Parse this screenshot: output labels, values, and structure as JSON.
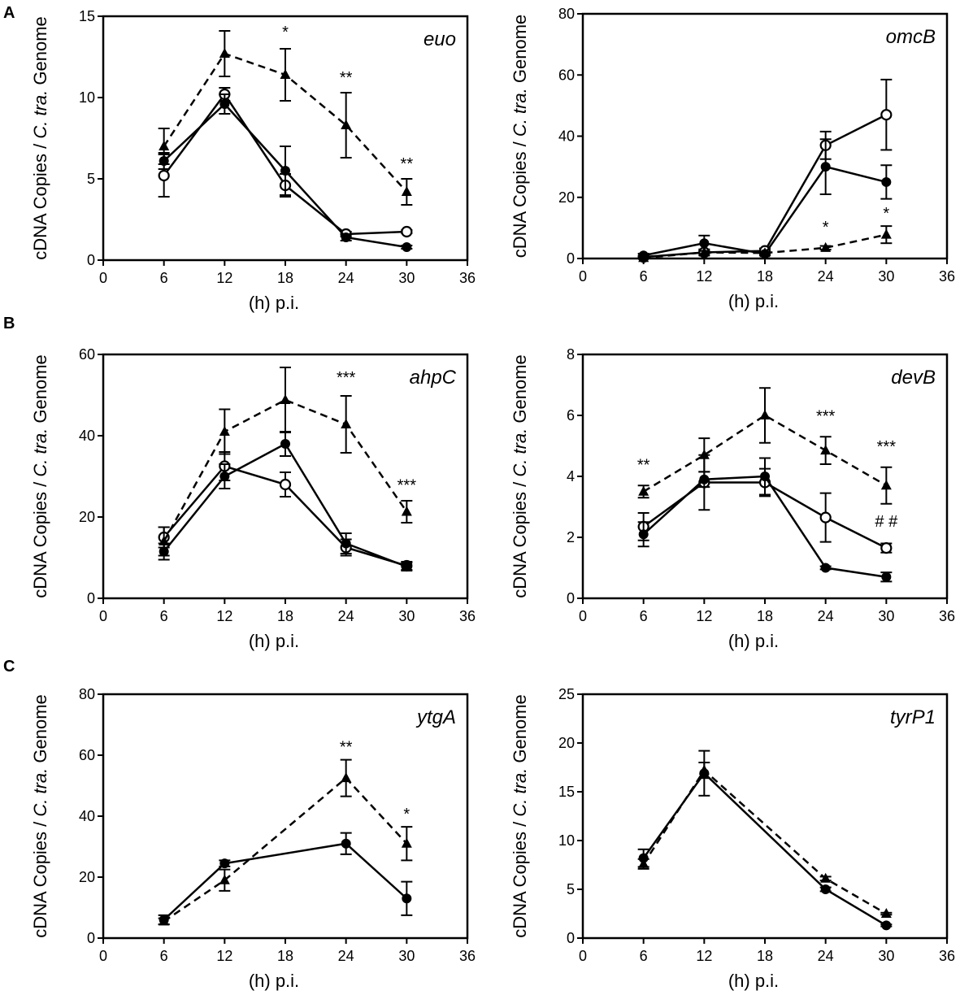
{
  "figure": {
    "panel_letters": [
      "A",
      "B",
      "C"
    ],
    "ylabel_prefix": "cDNA Copies / ",
    "ylabel_italic": "C. tra.",
    "ylabel_suffix": " Genome",
    "xlabel": "(h) p.i."
  },
  "chart_data": [
    {
      "type": "line",
      "title": "euo",
      "xlabel": "(h) p.i.",
      "ylabel": "cDNA Copies / C. tra. Genome",
      "xlim": [
        0,
        36
      ],
      "ylim": [
        0,
        15
      ],
      "xticks": [
        0,
        6,
        12,
        18,
        24,
        30,
        36
      ],
      "yticks": [
        0,
        5,
        10,
        15
      ],
      "series": [
        {
          "name": "open circle",
          "marker": "open-circle",
          "dash": false,
          "x": [
            6,
            12,
            18,
            24,
            30
          ],
          "y": [
            5.2,
            10.2,
            4.6,
            1.6,
            1.75
          ],
          "err": [
            1.3,
            0.4,
            0.7,
            0.15,
            0.1
          ]
        },
        {
          "name": "filled circle",
          "marker": "filled-circle",
          "dash": false,
          "x": [
            6,
            12,
            18,
            24,
            30
          ],
          "y": [
            6.1,
            9.6,
            5.5,
            1.4,
            0.8
          ],
          "err": [
            0.5,
            0.6,
            1.5,
            0.2,
            0.1
          ]
        },
        {
          "name": "triangle",
          "marker": "triangle",
          "dash": true,
          "x": [
            6,
            12,
            18,
            24,
            30
          ],
          "y": [
            7.0,
            12.7,
            11.4,
            8.3,
            4.2
          ],
          "err": [
            1.1,
            1.4,
            1.6,
            2.0,
            0.8
          ]
        }
      ],
      "annotations": [
        {
          "x": 18,
          "y": 13.7,
          "text": "*"
        },
        {
          "x": 24,
          "y": 10.9,
          "text": "**"
        },
        {
          "x": 30,
          "y": 5.6,
          "text": "**"
        }
      ]
    },
    {
      "type": "line",
      "title": "omcB",
      "xlabel": "(h) p.i.",
      "ylabel": "cDNA Copies / C. tra. Genome",
      "xlim": [
        0,
        36
      ],
      "ylim": [
        0,
        80
      ],
      "xticks": [
        0,
        6,
        12,
        18,
        24,
        30,
        36
      ],
      "yticks": [
        0,
        20,
        40,
        60,
        80
      ],
      "series": [
        {
          "name": "open circle",
          "marker": "open-circle",
          "dash": false,
          "x": [
            6,
            12,
            18,
            24,
            30
          ],
          "y": [
            0.5,
            2.0,
            2.5,
            37.0,
            47.0
          ],
          "err": [
            0.4,
            1.0,
            0.8,
            4.5,
            11.5
          ]
        },
        {
          "name": "filled circle",
          "marker": "filled-circle",
          "dash": false,
          "x": [
            6,
            12,
            18,
            24,
            30
          ],
          "y": [
            1.0,
            5.0,
            1.5,
            30.0,
            25.0
          ],
          "err": [
            0.6,
            2.5,
            0.5,
            9.0,
            5.5
          ]
        },
        {
          "name": "triangle",
          "marker": "triangle",
          "dash": true,
          "x": [
            6,
            12,
            18,
            24,
            30
          ],
          "y": [
            0.2,
            2.0,
            1.8,
            3.5,
            7.8
          ],
          "err": [
            0.2,
            0.5,
            0.4,
            0.6,
            2.8
          ]
        }
      ],
      "annotations": [
        {
          "x": 24,
          "y": 8.5,
          "text": "*"
        },
        {
          "x": 30,
          "y": 13.0,
          "text": "*"
        }
      ]
    },
    {
      "type": "line",
      "title": "ahpC",
      "xlabel": "(h) p.i.",
      "ylabel": "cDNA Copies / C. tra. Genome",
      "xlim": [
        0,
        36
      ],
      "ylim": [
        0,
        60
      ],
      "xticks": [
        0,
        6,
        12,
        18,
        24,
        30,
        36
      ],
      "yticks": [
        0,
        20,
        40,
        60
      ],
      "series": [
        {
          "name": "open circle",
          "marker": "open-circle",
          "dash": false,
          "x": [
            6,
            12,
            18,
            24,
            30
          ],
          "y": [
            15.0,
            32.5,
            28.0,
            12.5,
            8.0
          ],
          "err": [
            2.5,
            3.5,
            3.0,
            2.0,
            1.0
          ]
        },
        {
          "name": "filled circle",
          "marker": "filled-circle",
          "dash": false,
          "x": [
            6,
            12,
            18,
            24,
            30
          ],
          "y": [
            11.5,
            30.0,
            38.0,
            13.5,
            7.8
          ],
          "err": [
            2.0,
            3.0,
            3.0,
            2.5,
            1.0
          ]
        },
        {
          "name": "triangle",
          "marker": "triangle",
          "dash": true,
          "x": [
            6,
            12,
            18,
            24,
            30
          ],
          "y": [
            14.0,
            41.0,
            48.8,
            42.8,
            21.3
          ],
          "err": [
            3.5,
            5.5,
            8.0,
            7.0,
            2.7
          ]
        }
      ],
      "annotations": [
        {
          "x": 24,
          "y": 53.0,
          "text": "***"
        },
        {
          "x": 30,
          "y": 26.5,
          "text": "***"
        }
      ]
    },
    {
      "type": "line",
      "title": "devB",
      "xlabel": "(h) p.i.",
      "ylabel": "cDNA Copies / C. tra. Genome",
      "xlim": [
        0,
        36
      ],
      "ylim": [
        0,
        8
      ],
      "xticks": [
        0,
        6,
        12,
        18,
        24,
        30,
        36
      ],
      "yticks": [
        0,
        2,
        4,
        6,
        8
      ],
      "series": [
        {
          "name": "open circle",
          "marker": "open-circle",
          "dash": false,
          "x": [
            6,
            12,
            18,
            24,
            30
          ],
          "y": [
            2.35,
            3.8,
            3.8,
            2.65,
            1.65
          ],
          "err": [
            0.45,
            0.9,
            0.45,
            0.8,
            0.15
          ]
        },
        {
          "name": "filled circle",
          "marker": "filled-circle",
          "dash": false,
          "x": [
            6,
            12,
            18,
            24,
            30
          ],
          "y": [
            2.1,
            3.9,
            4.0,
            1.0,
            0.7
          ],
          "err": [
            0.4,
            0.25,
            0.6,
            0.05,
            0.15
          ]
        },
        {
          "name": "triangle",
          "marker": "triangle",
          "dash": true,
          "x": [
            6,
            12,
            18,
            24,
            30
          ],
          "y": [
            3.5,
            4.7,
            6.0,
            4.85,
            3.7
          ],
          "err": [
            0.2,
            0.55,
            0.9,
            0.45,
            0.6
          ]
        }
      ],
      "annotations": [
        {
          "x": 6,
          "y": 4.2,
          "text": "**"
        },
        {
          "x": 24,
          "y": 5.8,
          "text": "***"
        },
        {
          "x": 30,
          "y": 4.8,
          "text": "***"
        },
        {
          "x": 30,
          "y": 2.35,
          "text": "# #"
        }
      ]
    },
    {
      "type": "line",
      "title": "ytgA",
      "xlabel": "(h) p.i.",
      "ylabel": "cDNA Copies / C. tra. Genome",
      "xlim": [
        0,
        36
      ],
      "ylim": [
        0,
        80
      ],
      "xticks": [
        0,
        6,
        12,
        18,
        24,
        30,
        36
      ],
      "yticks": [
        0,
        20,
        40,
        60,
        80
      ],
      "series": [
        {
          "name": "filled circle",
          "marker": "filled-circle",
          "dash": false,
          "x": [
            6,
            12,
            24,
            30
          ],
          "y": [
            6.0,
            24.5,
            31.0,
            13.0
          ],
          "err": [
            1.5,
            1.0,
            3.5,
            5.5
          ]
        },
        {
          "name": "triangle",
          "marker": "triangle",
          "dash": true,
          "x": [
            6,
            12,
            24,
            30
          ],
          "y": [
            5.5,
            19.0,
            52.5,
            31.0
          ],
          "err": [
            1.0,
            3.5,
            6.0,
            5.5
          ]
        }
      ],
      "annotations": [
        {
          "x": 24,
          "y": 61.0,
          "text": "**"
        },
        {
          "x": 30,
          "y": 39.0,
          "text": "*"
        }
      ]
    },
    {
      "type": "line",
      "title": "tyrP1",
      "xlabel": "(h) p.i.",
      "ylabel": "cDNA Copies / C. tra. Genome",
      "xlim": [
        0,
        36
      ],
      "ylim": [
        0,
        25
      ],
      "xticks": [
        0,
        6,
        12,
        18,
        24,
        30,
        36
      ],
      "yticks": [
        0,
        5,
        10,
        15,
        20,
        25
      ],
      "series": [
        {
          "name": "filled circle",
          "marker": "filled-circle",
          "dash": false,
          "x": [
            6,
            12,
            24,
            30
          ],
          "y": [
            8.2,
            16.9,
            5.0,
            1.3
          ],
          "err": [
            0.9,
            2.3,
            0.2,
            0.1
          ]
        },
        {
          "name": "triangle",
          "marker": "triangle",
          "dash": true,
          "x": [
            6,
            12,
            24,
            30
          ],
          "y": [
            7.6,
            17.2,
            6.1,
            2.5
          ],
          "err": [
            0.5,
            0.8,
            0.2,
            0.1
          ]
        }
      ],
      "annotations": []
    }
  ]
}
